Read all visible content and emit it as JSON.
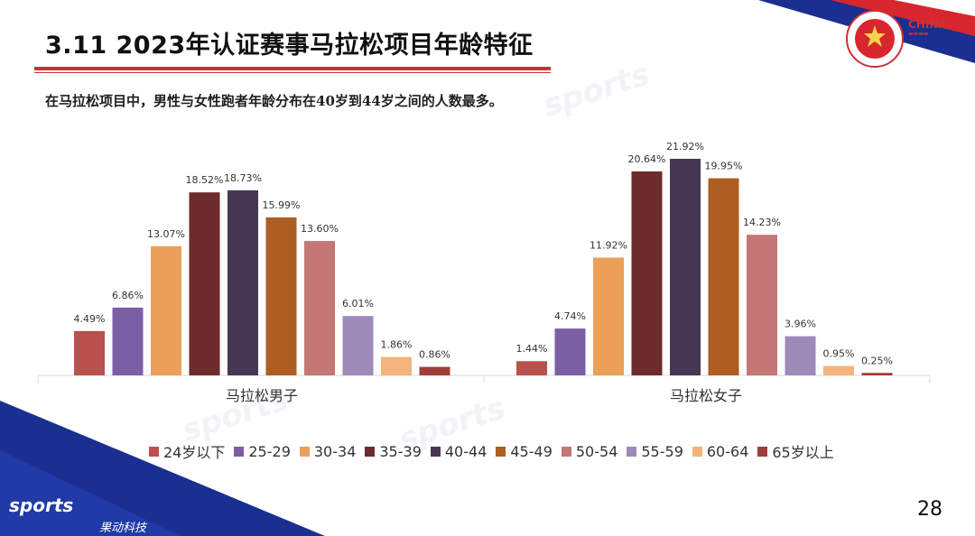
{
  "page": {
    "title": "3.11 2023年认证赛事马拉松项目年龄特征",
    "subtitle": "在马拉松项目中，男性与女性跑者年龄分布在40岁到44岁之间的人数最多。",
    "page_number": "28",
    "logo_text": "sports",
    "logo_subtext": "果动科技",
    "watermark_text": "sports",
    "china_logo_text": "CHINA"
  },
  "colors": {
    "title_rule": "#c8323a",
    "corner_blue": "#1a2f8f",
    "corner_red": "#d8262e"
  },
  "chart_data": {
    "type": "bar",
    "groups": [
      "马拉松男子",
      "马拉松女子"
    ],
    "series": [
      {
        "name": "24岁以下",
        "color": "#b9514f",
        "values": [
          4.49,
          1.44
        ],
        "labels": [
          "4.49%",
          "1.44%"
        ]
      },
      {
        "name": "25-29",
        "color": "#7b5fa5",
        "values": [
          6.86,
          4.74
        ],
        "labels": [
          "6.86%",
          "4.74%"
        ]
      },
      {
        "name": "30-34",
        "color": "#eba05a",
        "values": [
          13.07,
          11.92
        ],
        "labels": [
          "13.07%",
          "11.92%"
        ]
      },
      {
        "name": "35-39",
        "color": "#6e2b2b",
        "values": [
          18.52,
          20.64
        ],
        "labels": [
          "18.52%",
          "20.64%"
        ]
      },
      {
        "name": "40-44",
        "color": "#463755",
        "values": [
          18.73,
          21.92
        ],
        "labels": [
          "18.73%",
          "21.92%"
        ]
      },
      {
        "name": "45-49",
        "color": "#ae5e22",
        "values": [
          15.99,
          19.95
        ],
        "labels": [
          "15.99%",
          "19.95%"
        ]
      },
      {
        "name": "50-54",
        "color": "#c47774",
        "values": [
          13.6,
          14.23
        ],
        "labels": [
          "13.60%",
          "14.23%"
        ]
      },
      {
        "name": "55-59",
        "color": "#9d8ab8",
        "values": [
          6.01,
          3.96
        ],
        "labels": [
          "6.01%",
          "3.96%"
        ]
      },
      {
        "name": "60-64",
        "color": "#f2b47c",
        "values": [
          1.86,
          0.95
        ],
        "labels": [
          "1.86%",
          "0.95%"
        ]
      },
      {
        "name": "65岁以上",
        "color": "#a13d37",
        "values": [
          0.86,
          0.25
        ],
        "labels": [
          "0.86%",
          "0.25%"
        ]
      }
    ],
    "unit": "%",
    "ylim": [
      0,
      22
    ],
    "grid": false,
    "legend": "bottom"
  }
}
